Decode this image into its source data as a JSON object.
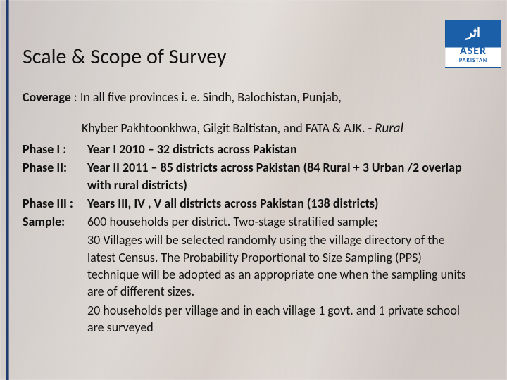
{
  "logo": {
    "top": "اثر",
    "mid": "ASER",
    "bot": "PAKISTAN"
  },
  "title": "Scale & Scope of Survey",
  "coverage": {
    "lead": "Coverage",
    "text": " : In all five  provinces i. e. Sindh, Balochistan, Punjab,"
  },
  "subline": {
    "text": "Khyber Pakhtoonkhwa, Gilgit Baltistan, and FATA & AJK. -  ",
    "rural": "Rural"
  },
  "phase1": {
    "lead": "Phase I :",
    "text": "Year I    2010 – 32  districts across Pakistan"
  },
  "phase2": {
    "lead": "Phase II:",
    "text": "Year II   2011 – 85  districts across Pakistan (84 Rural + 3 Urban /2 overlap with rural districts)"
  },
  "phase3": {
    "lead": "Phase III :",
    "text": "Years III, IV , V  all districts across Pakistan (138 districts)"
  },
  "sample": {
    "lead": "Sample:",
    "text": "600 households per district. Two-stage stratified sample;"
  },
  "para1": "30 Villages will be selected randomly using the village directory of the latest Census. The Probability Proportional to Size Sampling (PPS) technique will be  adopted as an appropriate one when the sampling units are of different sizes.",
  "para2": "20  households per village and in each village 1 govt. and 1 private school are surveyed"
}
